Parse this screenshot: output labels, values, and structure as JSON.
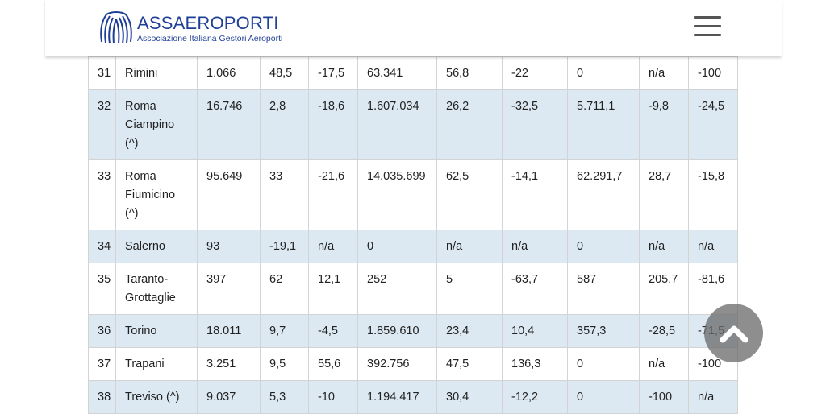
{
  "header": {
    "brand_name": "ASSAEROPORTI",
    "brand_tagline": "Associazione Italiana Gestori Aeroporti",
    "logo_icon": "assaeroporti-wing-logo",
    "menu_icon": "hamburger-menu-icon"
  },
  "colors": {
    "brand": "#1f3f97",
    "row_alt": "#dce9f3",
    "border": "#d3d3d3"
  },
  "table": {
    "rows": [
      [
        "31",
        "Rimini",
        "1.066",
        "48,5",
        "-17,5",
        "63.341",
        "56,8",
        "-22",
        "0",
        "n/a",
        "-100"
      ],
      [
        "32",
        "Roma\nCiampino\n(^)",
        "16.746",
        "2,8",
        "-18,6",
        "1.607.034",
        "26,2",
        "-32,5",
        "5.711,1",
        "-9,8",
        "-24,5"
      ],
      [
        "33",
        "Roma\nFiumicino\n(^)",
        "95.649",
        "33",
        "-21,6",
        "14.035.699",
        "62,5",
        "-14,1",
        "62.291,7",
        "28,7",
        "-15,8"
      ],
      [
        "34",
        "Salerno",
        "93",
        "-19,1",
        "n/a",
        "0",
        "n/a",
        "n/a",
        "0",
        "n/a",
        "n/a"
      ],
      [
        "35",
        "Taranto-\nGrottaglie",
        "397",
        "62",
        "12,1",
        "252",
        "5",
        "-63,7",
        "587",
        "205,7",
        "-81,6"
      ],
      [
        "36",
        "Torino",
        "18.011",
        "9,7",
        "-4,5",
        "1.859.610",
        "23,4",
        "10,4",
        "357,3",
        "-28,5",
        "-71,5"
      ],
      [
        "37",
        "Trapani",
        "3.251",
        "9,5",
        "55,6",
        "392.756",
        "47,5",
        "136,3",
        "0",
        "n/a",
        "-100"
      ],
      [
        "38",
        "Treviso (^)",
        "9.037",
        "5,3",
        "-10",
        "1.194.417",
        "30,4",
        "-12,2",
        "0",
        "-100",
        "n/a"
      ]
    ]
  },
  "scroll_top_icon": "chevron-up-icon"
}
